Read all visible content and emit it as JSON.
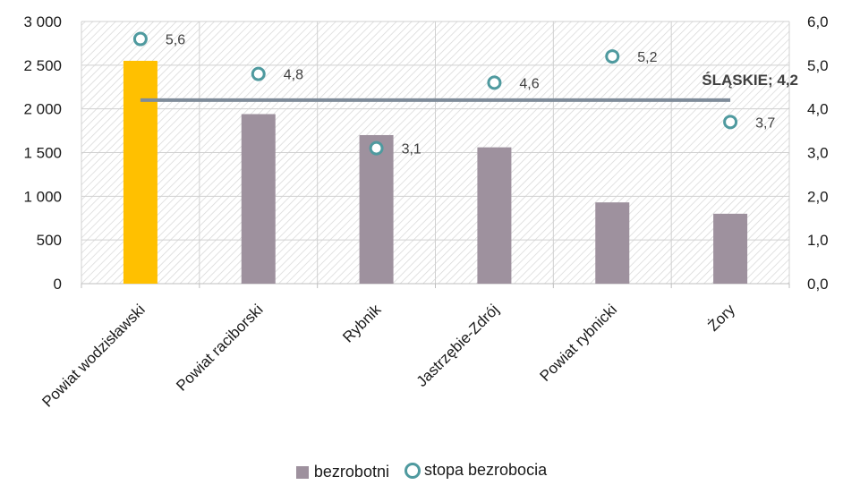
{
  "chart_data": {
    "type": "bar",
    "categories": [
      "Powiat wodzisławski",
      "Powiat raciborski",
      "Rybnik",
      "Jastrzębie-Zdrój",
      "Powiat rybnicki",
      "Żory"
    ],
    "series": [
      {
        "name": "bezrobotni",
        "type": "bar",
        "axis": "left",
        "values": [
          2550,
          1940,
          1700,
          1560,
          930,
          800
        ],
        "color": "#9e919e",
        "highlight_index": 0,
        "highlight_color": "#ffc000"
      },
      {
        "name": "stopa bezrobocia",
        "type": "scatter",
        "axis": "right",
        "values": [
          5.6,
          4.8,
          3.1,
          4.6,
          5.2,
          3.7
        ],
        "labels": [
          "5,6",
          "4,8",
          "3,1",
          "4,6",
          "5,2",
          "3,7"
        ],
        "color": "#4f9a9f"
      }
    ],
    "reference_line": {
      "label": "ŚLĄSKIE;  4,2",
      "value": 4.2,
      "axis": "right",
      "color": "#7f8c9a"
    },
    "y_left": {
      "ylim": [
        0,
        3000
      ],
      "ticks": [
        0,
        500,
        1000,
        1500,
        2000,
        2500,
        3000
      ],
      "tick_labels": [
        "0",
        "500",
        "1 000",
        "1 500",
        "2 000",
        "2 500",
        "3 000"
      ]
    },
    "y_right": {
      "ylim": [
        0,
        6
      ],
      "ticks": [
        0,
        1,
        2,
        3,
        4,
        5,
        6
      ],
      "tick_labels": [
        "0,0",
        "1,0",
        "2,0",
        "3,0",
        "4,0",
        "5,0",
        "6,0"
      ]
    },
    "grid": true,
    "legend_position": "bottom",
    "legend": [
      "bezrobotni",
      "stopa bezrobocia"
    ]
  }
}
